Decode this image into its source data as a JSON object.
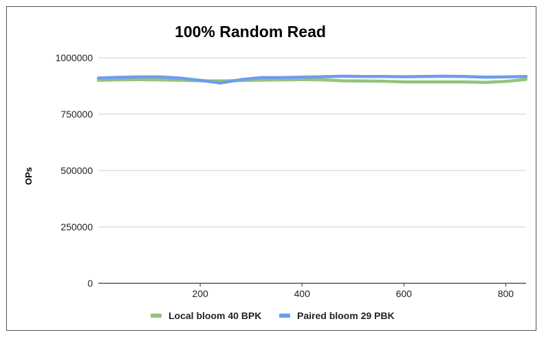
{
  "chart_data": {
    "type": "line",
    "title": "100% Random Read",
    "xlabel": "",
    "ylabel": "OPs",
    "xlim": [
      0,
      840
    ],
    "ylim": [
      0,
      1000000
    ],
    "xticks": [
      200,
      400,
      600,
      800
    ],
    "yticks": [
      0,
      250000,
      500000,
      750000,
      1000000
    ],
    "grid": true,
    "legend_position": "bottom",
    "series": [
      {
        "name": "Local bloom 40 BPK",
        "color": "#93c47d",
        "x": [
          0,
          40,
          80,
          120,
          160,
          200,
          240,
          280,
          320,
          360,
          400,
          440,
          480,
          520,
          560,
          600,
          640,
          680,
          720,
          760,
          800,
          840
        ],
        "y": [
          900000,
          902000,
          903000,
          902000,
          900000,
          898000,
          897000,
          899000,
          901000,
          902000,
          903000,
          902000,
          898000,
          897000,
          896000,
          893000,
          893000,
          893000,
          893000,
          891000,
          895000,
          904000
        ]
      },
      {
        "name": "Paired bloom 29 PBK",
        "color": "#6d9eeb",
        "x": [
          0,
          40,
          80,
          120,
          160,
          200,
          240,
          280,
          320,
          360,
          400,
          440,
          480,
          520,
          560,
          600,
          640,
          680,
          720,
          760,
          800,
          840
        ],
        "y": [
          910000,
          913000,
          915000,
          915000,
          910000,
          900000,
          888000,
          903000,
          912000,
          912000,
          914000,
          916000,
          918000,
          917000,
          917000,
          916000,
          917000,
          918000,
          917000,
          914000,
          915000,
          917000
        ]
      }
    ]
  }
}
